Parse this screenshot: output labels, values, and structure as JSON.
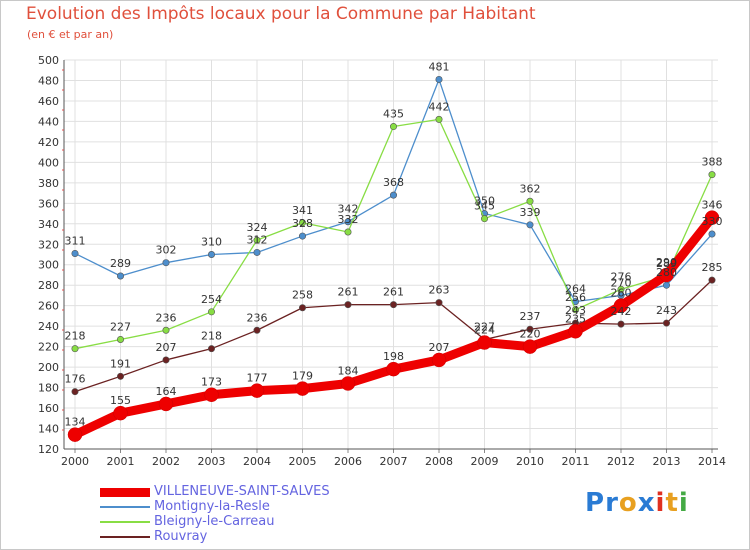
{
  "header": {
    "title": "Evolution des Impôts locaux pour la Commune par Habitant",
    "subtitle": "(en € et par an)"
  },
  "logo": {
    "text": "Proxiti"
  },
  "chart_data": {
    "type": "line",
    "title": "Evolution des Impôts locaux pour la Commune par Habitant",
    "subtitle": "(en € et par an)",
    "xlabel": "",
    "ylabel": "",
    "categories": [
      "2000",
      "2001",
      "2002",
      "2003",
      "2004",
      "2005",
      "2006",
      "2007",
      "2008",
      "2009",
      "2010",
      "2011",
      "2012",
      "2013",
      "2014"
    ],
    "ylim": [
      120,
      500
    ],
    "yticks": [
      120,
      140,
      160,
      180,
      200,
      220,
      240,
      260,
      280,
      300,
      320,
      340,
      360,
      380,
      400,
      420,
      440,
      460,
      480,
      500
    ],
    "grid": true,
    "legend_position": "bottom-left",
    "series": [
      {
        "name": "VILLENEUVE-SAINT-SALVES",
        "color": "#ee0000",
        "values": [
          134,
          155,
          164,
          173,
          177,
          179,
          184,
          198,
          207,
          224,
          220,
          235,
          260,
          290,
          346
        ],
        "labels": [
          "134",
          "155",
          "164",
          "173",
          "177",
          "179",
          "184",
          "198",
          "207",
          "224",
          "220",
          "235",
          "260",
          "290",
          "346"
        ]
      },
      {
        "name": "Montigny-la-Resle",
        "color": "#4d8ecc",
        "values": [
          311,
          289,
          302,
          310,
          312,
          328,
          342,
          368,
          481,
          350,
          339,
          264,
          270,
          280,
          330
        ],
        "labels": [
          "311",
          "289",
          "302",
          "310",
          "312",
          "328",
          "342",
          "368",
          "481",
          "350",
          "339",
          "264",
          "270",
          "280",
          "330"
        ]
      },
      {
        "name": "Bleigny-le-Carreau",
        "color": "#88dd44",
        "values": [
          218,
          227,
          236,
          254,
          324,
          341,
          332,
          435,
          442,
          345,
          362,
          256,
          276,
          289,
          388
        ],
        "labels": [
          "218",
          "227",
          "236",
          "254",
          "324",
          "341",
          "332",
          "435",
          "442",
          "345",
          "362",
          "256",
          "276",
          "289",
          "388"
        ]
      },
      {
        "name": "Rouvray",
        "color": "#6b2222",
        "values": [
          176,
          191,
          207,
          218,
          236,
          258,
          261,
          261,
          263,
          227,
          237,
          243,
          242,
          243,
          285
        ],
        "labels": [
          "176",
          "191",
          "207",
          "218",
          "236",
          "258",
          "261",
          "261",
          "263",
          "227",
          "237",
          "243",
          "242",
          "243",
          "285"
        ]
      }
    ]
  }
}
